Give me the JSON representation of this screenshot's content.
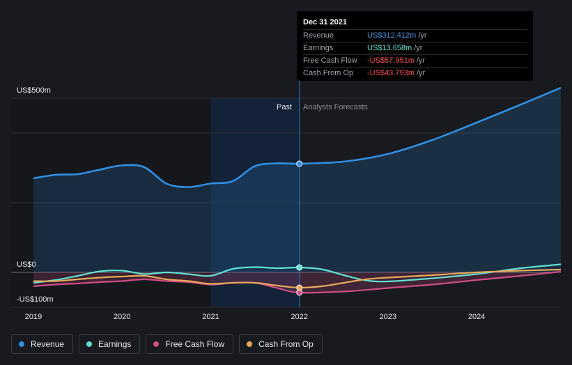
{
  "tooltip": {
    "date": "Dec 31 2021",
    "rows": [
      {
        "label": "Revenue",
        "value": "US$312.412m",
        "unit": "/yr",
        "color": "#3a95e0"
      },
      {
        "label": "Earnings",
        "value": "US$13.658m",
        "unit": "/yr",
        "color": "#5fe0d4"
      },
      {
        "label": "Free Cash Flow",
        "value": "-US$57.951m",
        "unit": "/yr",
        "color": "#ff4d4d"
      },
      {
        "label": "Cash From Op",
        "value": "-US$43.793m",
        "unit": "/yr",
        "color": "#ff4d4d"
      }
    ]
  },
  "legend": [
    {
      "label": "Revenue",
      "color": "#2f8fe3"
    },
    {
      "label": "Earnings",
      "color": "#5fe0d4"
    },
    {
      "label": "Free Cash Flow",
      "color": "#cf4c86"
    },
    {
      "label": "Cash From Op",
      "color": "#e8a959"
    }
  ],
  "chart_data": {
    "type": "line",
    "y_tick_labels": [
      "US$500m",
      "US$0",
      "-US$100m"
    ],
    "x_tick_labels": [
      "2019",
      "2020",
      "2021",
      "2022",
      "2023",
      "2024"
    ],
    "past_label": "Past",
    "forecast_label": "Analysts Forecasts",
    "divider_x": 2022.0,
    "xlim": [
      2018.8,
      2025.0
    ],
    "ylim": [
      -100,
      500
    ],
    "series": [
      {
        "name": "Revenue",
        "color": "#2f8fe3",
        "points": [
          [
            2019.0,
            270
          ],
          [
            2019.25,
            280
          ],
          [
            2019.5,
            282
          ],
          [
            2019.75,
            295
          ],
          [
            2020.0,
            307
          ],
          [
            2020.25,
            302
          ],
          [
            2020.5,
            255
          ],
          [
            2020.75,
            245
          ],
          [
            2021.0,
            255
          ],
          [
            2021.25,
            262
          ],
          [
            2021.5,
            305
          ],
          [
            2021.75,
            313
          ],
          [
            2022.0,
            312
          ],
          [
            2022.5,
            318
          ],
          [
            2023.0,
            340
          ],
          [
            2023.5,
            380
          ],
          [
            2024.0,
            430
          ],
          [
            2024.5,
            482
          ],
          [
            2024.95,
            530
          ]
        ]
      },
      {
        "name": "Earnings",
        "color": "#5fe0d4",
        "points": [
          [
            2019.0,
            -30
          ],
          [
            2019.25,
            -22
          ],
          [
            2019.5,
            -10
          ],
          [
            2019.75,
            3
          ],
          [
            2020.0,
            5
          ],
          [
            2020.25,
            -5
          ],
          [
            2020.5,
            0
          ],
          [
            2020.75,
            -5
          ],
          [
            2021.0,
            -10
          ],
          [
            2021.25,
            10
          ],
          [
            2021.5,
            15
          ],
          [
            2021.75,
            12
          ],
          [
            2022.0,
            14
          ],
          [
            2022.25,
            9
          ],
          [
            2022.5,
            -8
          ],
          [
            2022.75,
            -23
          ],
          [
            2023.0,
            -26
          ],
          [
            2023.5,
            -17
          ],
          [
            2024.0,
            -5
          ],
          [
            2024.5,
            12
          ],
          [
            2024.95,
            23
          ]
        ]
      },
      {
        "name": "Free Cash Flow",
        "color": "#cf4c86",
        "points": [
          [
            2019.0,
            -40
          ],
          [
            2019.25,
            -35
          ],
          [
            2019.5,
            -32
          ],
          [
            2019.75,
            -28
          ],
          [
            2020.0,
            -25
          ],
          [
            2020.25,
            -20
          ],
          [
            2020.5,
            -25
          ],
          [
            2020.75,
            -28
          ],
          [
            2021.0,
            -35
          ],
          [
            2021.25,
            -30
          ],
          [
            2021.5,
            -30
          ],
          [
            2021.75,
            -45
          ],
          [
            2022.0,
            -58
          ],
          [
            2022.5,
            -55
          ],
          [
            2023.0,
            -45
          ],
          [
            2023.5,
            -35
          ],
          [
            2024.0,
            -22
          ],
          [
            2024.5,
            -10
          ],
          [
            2024.95,
            2
          ]
        ]
      },
      {
        "name": "Cash From Op",
        "color": "#e8a959",
        "points": [
          [
            2019.0,
            -25
          ],
          [
            2019.25,
            -25
          ],
          [
            2019.5,
            -20
          ],
          [
            2019.75,
            -15
          ],
          [
            2020.0,
            -12
          ],
          [
            2020.25,
            -10
          ],
          [
            2020.5,
            -20
          ],
          [
            2020.75,
            -25
          ],
          [
            2021.0,
            -33
          ],
          [
            2021.25,
            -30
          ],
          [
            2021.5,
            -30
          ],
          [
            2021.75,
            -38
          ],
          [
            2022.0,
            -44
          ],
          [
            2022.25,
            -40
          ],
          [
            2022.5,
            -30
          ],
          [
            2022.75,
            -20
          ],
          [
            2023.0,
            -15
          ],
          [
            2023.5,
            -8
          ],
          [
            2024.0,
            0
          ],
          [
            2024.5,
            5
          ],
          [
            2024.95,
            8
          ]
        ]
      }
    ]
  }
}
